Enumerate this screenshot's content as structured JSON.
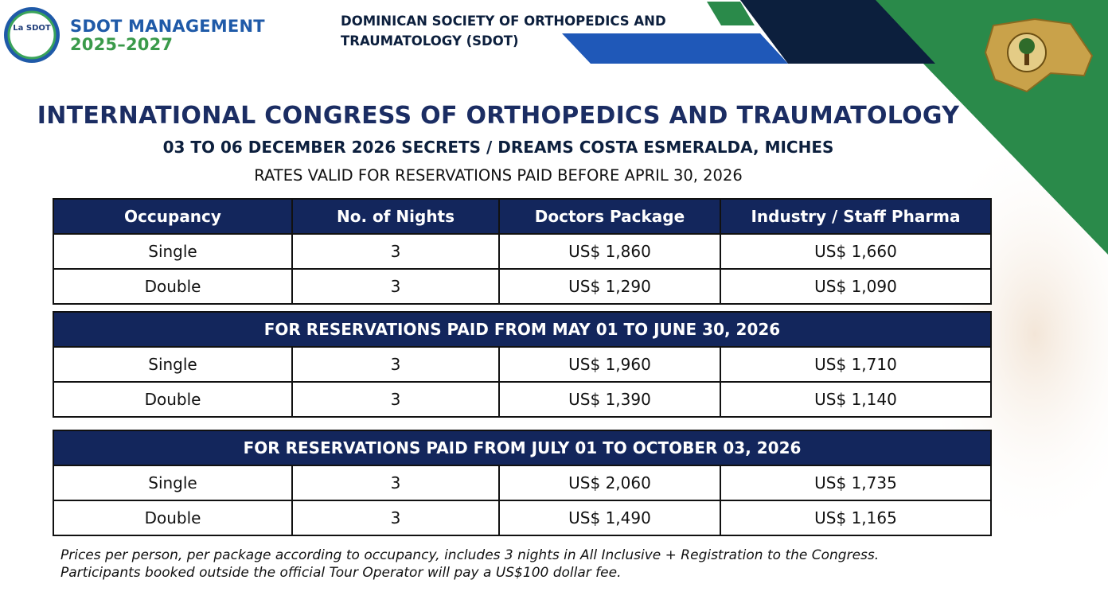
{
  "header": {
    "logo_text": "La SDOT",
    "brand_line1": "SDOT MANAGEMENT",
    "brand_line2": "2025–2027",
    "organization": "DOMINICAN SOCIETY OF ORTHOPEDICS AND TRAUMATOLOGY (SDOT)"
  },
  "title": "INTERNATIONAL CONGRESS OF ORTHOPEDICS AND TRAUMATOLOGY",
  "subtitle": "03 TO 06 DECEMBER 2026 SECRETS / DREAMS COSTA ESMERALDA, MICHES",
  "validity": "RATES VALID FOR RESERVATIONS PAID BEFORE APRIL 30, 2026",
  "table": {
    "columns": [
      "Occupancy",
      "No. of Nights",
      "Doctors Package",
      "Industry / Staff Pharma"
    ],
    "sections": [
      {
        "rows": [
          [
            "Single",
            "3",
            "US$ 1,860",
            "US$ 1,660"
          ],
          [
            "Double",
            "3",
            "US$ 1,290",
            "US$ 1,090"
          ]
        ]
      },
      {
        "heading": "FOR RESERVATIONS PAID FROM MAY 01 TO JUNE 30, 2026",
        "rows": [
          [
            "Single",
            "3",
            "US$ 1,960",
            "US$ 1,710"
          ],
          [
            "Double",
            "3",
            "US$ 1,390",
            "US$ 1,140"
          ]
        ]
      },
      {
        "heading": "FOR RESERVATIONS PAID FROM JULY 01 TO OCTOBER 03, 2026",
        "rows": [
          [
            "Single",
            "3",
            "US$ 2,060",
            "US$ 1,735"
          ],
          [
            "Double",
            "3",
            "US$ 1,490",
            "US$ 1,165"
          ]
        ]
      }
    ]
  },
  "notes": [
    "Prices per person, per package according to occupancy, includes 3 nights in All Inclusive + Registration to the Congress.",
    "Participants booked outside the official Tour Operator will pay a US$100 dollar fee."
  ]
}
